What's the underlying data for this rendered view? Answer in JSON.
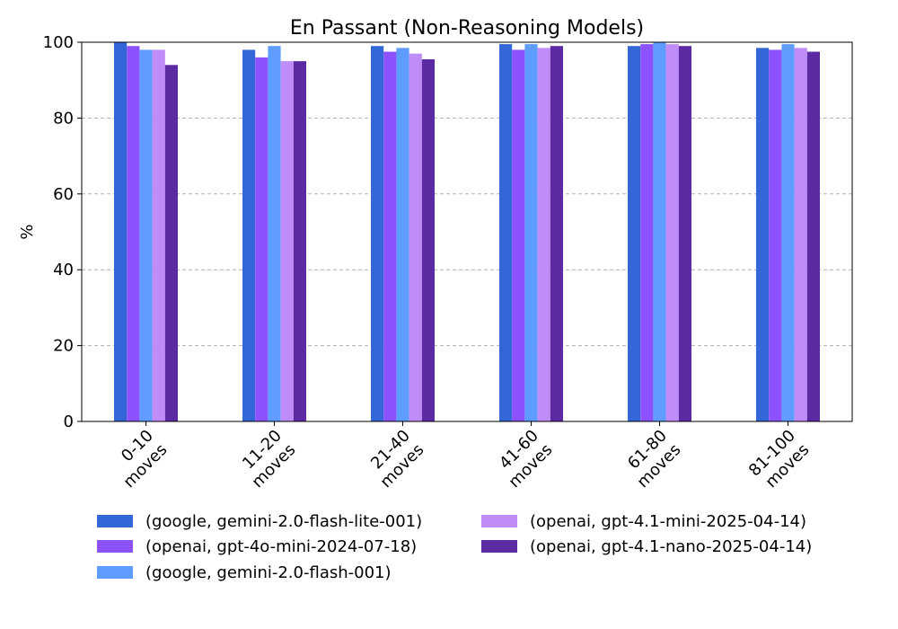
{
  "chart_data": {
    "type": "bar",
    "title": "En Passant (Non-Reasoning Models)",
    "xlabel": "",
    "ylabel": "%",
    "ylim": [
      0,
      100
    ],
    "yticks": [
      0,
      20,
      40,
      60,
      80,
      100
    ],
    "grid": "horizontal dashed",
    "legend_placement": "bottom",
    "categories": [
      "0-10\nmoves",
      "11-20\nmoves",
      "21-40\nmoves",
      "41-60\nmoves",
      "61-80\nmoves",
      "81-100\nmoves"
    ],
    "series": [
      {
        "name": "(google, gemini-2.0-flash-lite-001)",
        "color": "#3366d6",
        "values": [
          100,
          98,
          99,
          99.5,
          99,
          98.5
        ]
      },
      {
        "name": "(openai, gpt-4o-mini-2024-07-18)",
        "color": "#8c52ff",
        "values": [
          99,
          96,
          97.5,
          98,
          99.5,
          98
        ]
      },
      {
        "name": "(google, gemini-2.0-flash-001)",
        "color": "#5e9cff",
        "values": [
          98,
          99,
          98.5,
          99.5,
          100,
          99.5
        ]
      },
      {
        "name": "(openai, gpt-4.1-mini-2025-04-14)",
        "color": "#c08cf8",
        "values": [
          98,
          95,
          97,
          98.5,
          99.5,
          98.5
        ]
      },
      {
        "name": "(openai, gpt-4.1-nano-2025-04-14)",
        "color": "#5c2aa3",
        "values": [
          94,
          95,
          95.5,
          99,
          99,
          97.5
        ]
      }
    ]
  }
}
